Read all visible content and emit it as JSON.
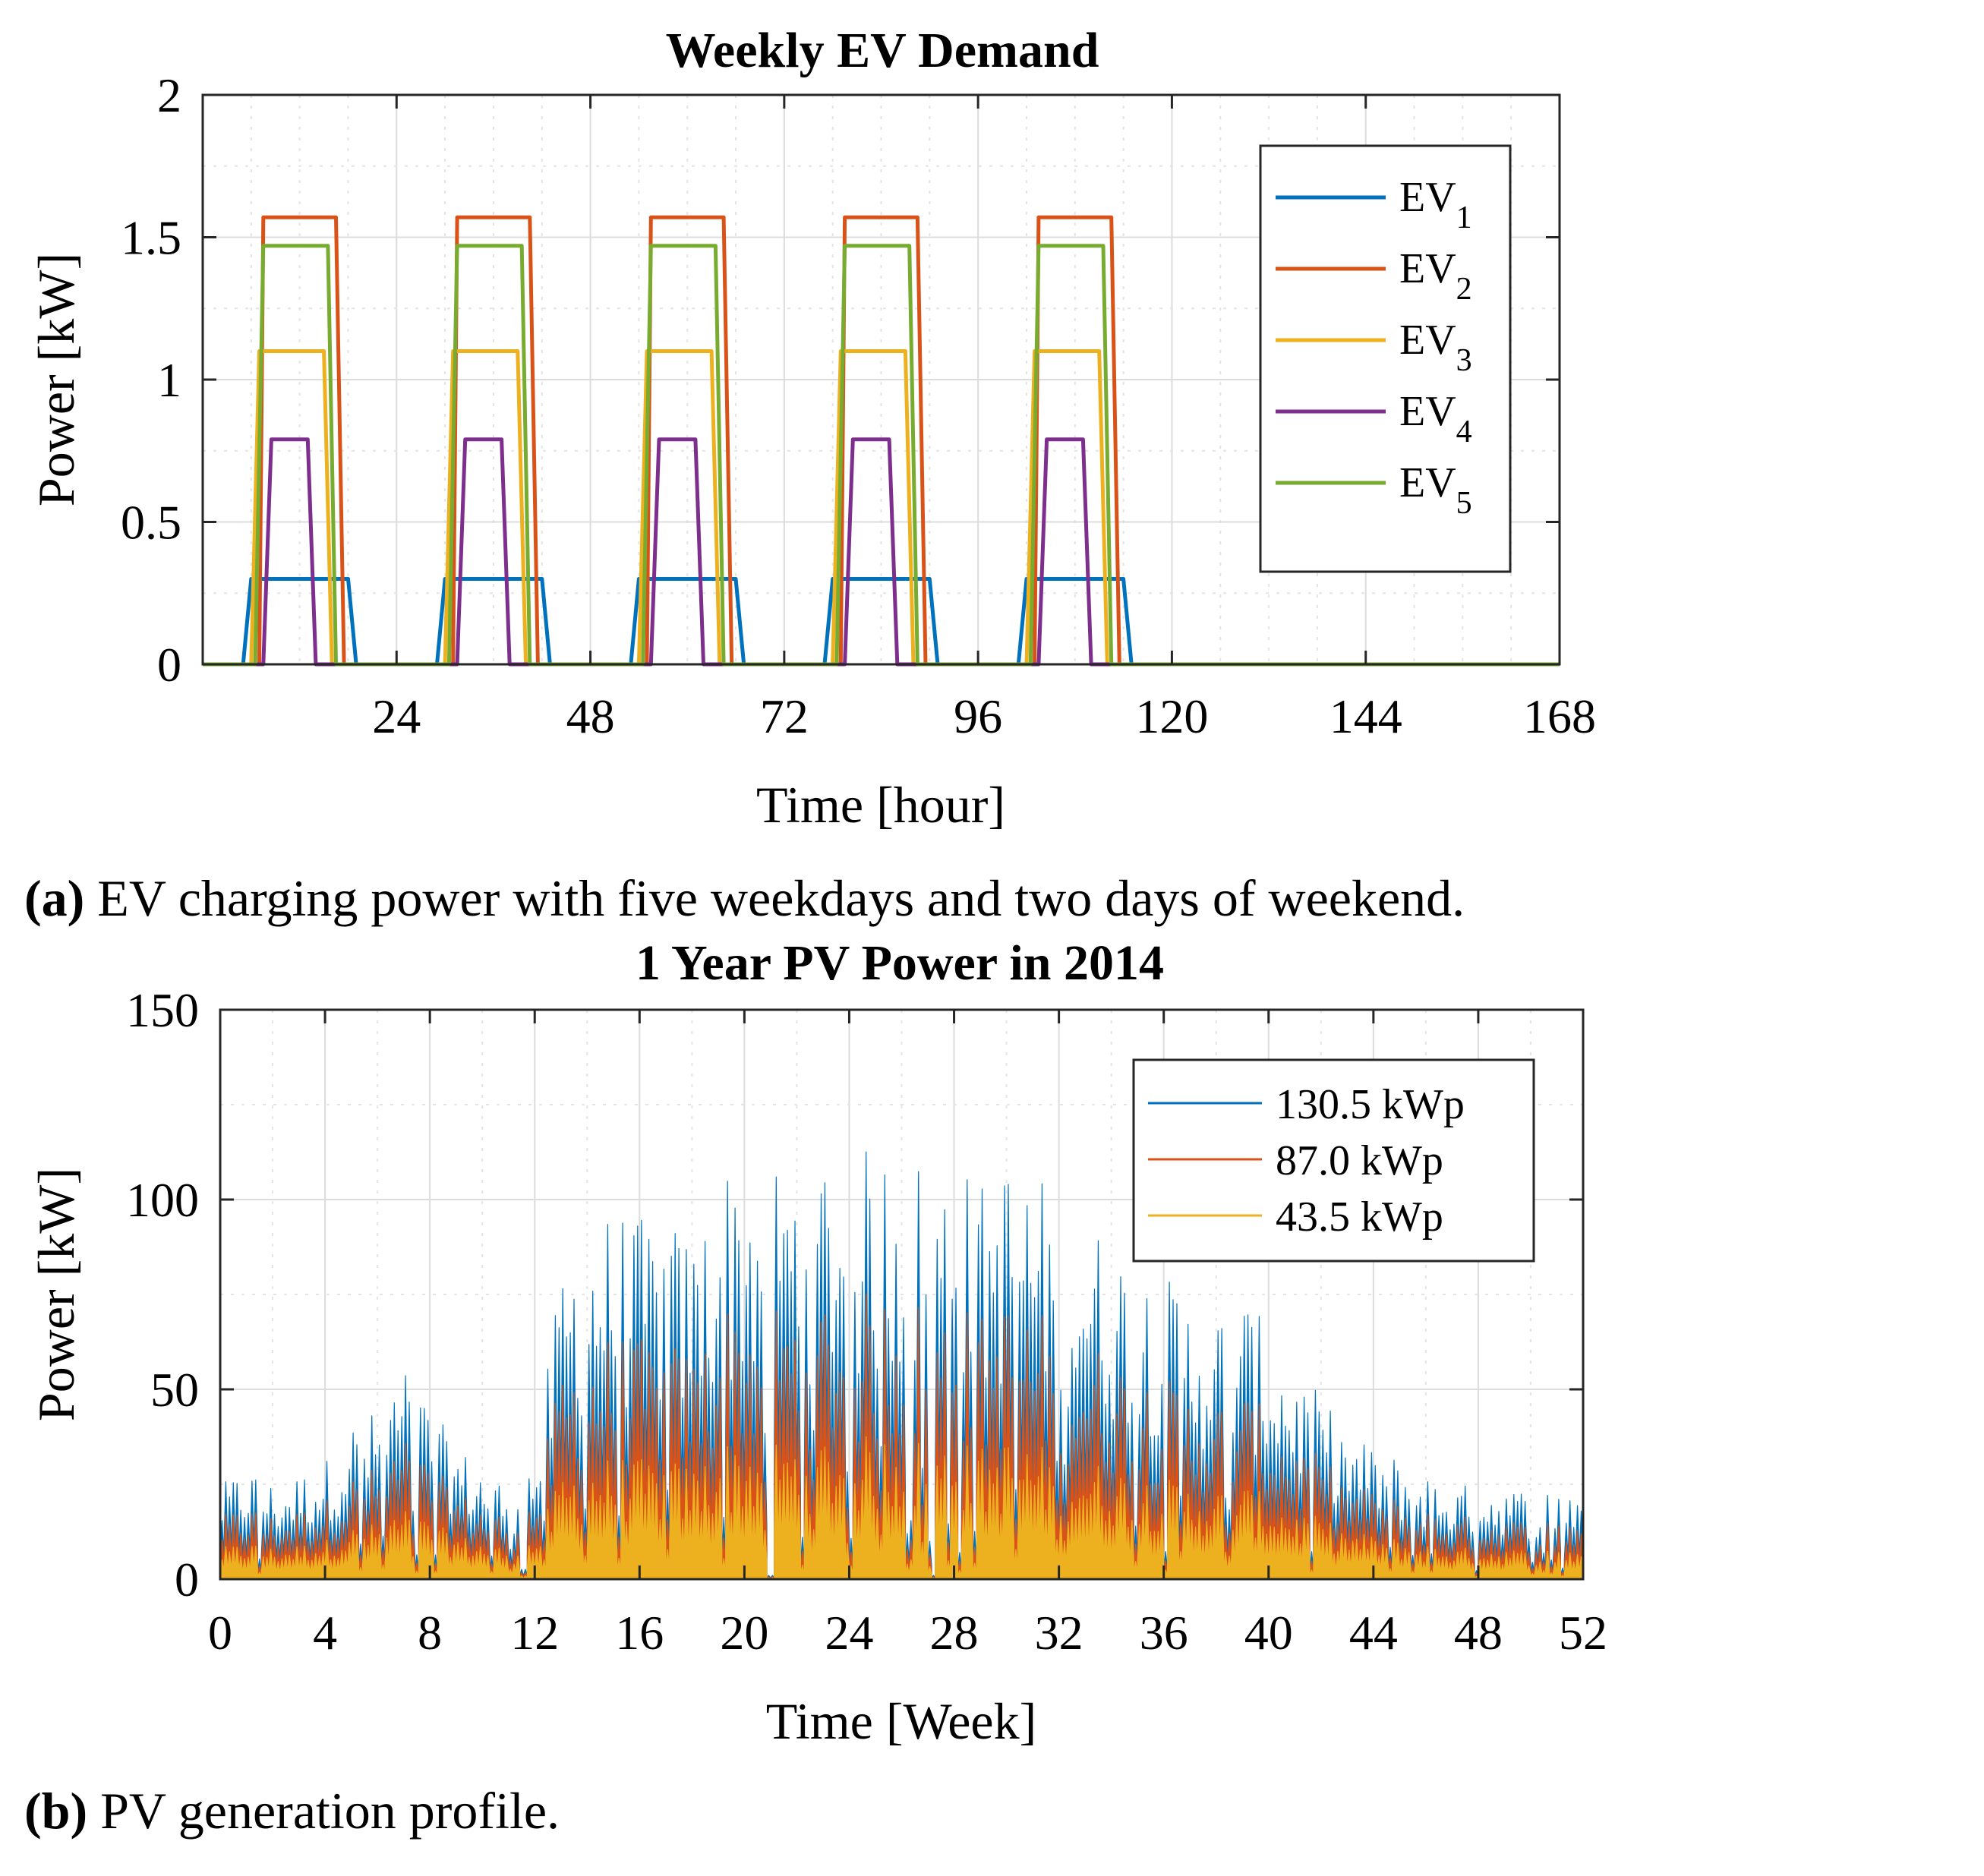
{
  "chart_data": [
    {
      "type": "line",
      "title": "Weekly EV Demand",
      "xlabel": "Time [hour]",
      "ylabel": "Power [kW]",
      "xlim": [
        0,
        168
      ],
      "ylim": [
        0,
        2
      ],
      "xticks": [
        "24",
        "48",
        "72",
        "96",
        "120",
        "144",
        "168"
      ],
      "yticks": [
        "0",
        "0.5",
        "1",
        "1.5",
        "2"
      ],
      "grid": true,
      "legend_position": "top-right",
      "pattern": "charging profile repeated on five weekdays starting at hour 0, 24, 48, 72, 96; zero on weekend (hours 120-168)",
      "series": [
        {
          "name": "EV",
          "sub": "1",
          "color": "#0072BD",
          "rise_start": 5,
          "rise_end": 6,
          "fall_start": 18,
          "fall_end": 19,
          "peak": 0.3
        },
        {
          "name": "EV",
          "sub": "2",
          "color": "#D95319",
          "rise_start": 7,
          "rise_end": 7.5,
          "fall_start": 16.5,
          "fall_end": 17.5,
          "peak": 1.57
        },
        {
          "name": "EV",
          "sub": "3",
          "color": "#EDB120",
          "rise_start": 6,
          "rise_end": 7,
          "fall_start": 15,
          "fall_end": 16,
          "peak": 1.1
        },
        {
          "name": "EV",
          "sub": "4",
          "color": "#7E2F8E",
          "rise_start": 7.5,
          "rise_end": 8.5,
          "fall_start": 13,
          "fall_end": 14,
          "peak": 0.79
        },
        {
          "name": "EV",
          "sub": "5",
          "color": "#77AC30",
          "rise_start": 6.5,
          "rise_end": 7.5,
          "fall_start": 15.5,
          "fall_end": 16.5,
          "peak": 1.47
        }
      ]
    },
    {
      "type": "area",
      "title": "1 Year PV Power in 2014",
      "xlabel": "Time [Week]",
      "ylabel": "Power [kW]",
      "xlim": [
        0,
        52
      ],
      "ylim": [
        0,
        150
      ],
      "xticks": [
        "0",
        "4",
        "8",
        "12",
        "16",
        "20",
        "24",
        "28",
        "32",
        "36",
        "40",
        "44",
        "48",
        "52"
      ],
      "yticks": [
        "0",
        "50",
        "100",
        "150"
      ],
      "grid": true,
      "legend_position": "top-right",
      "series": [
        {
          "name": "130.5 kWp",
          "color": "#0072BD",
          "scale": 1.0
        },
        {
          "name": "87.0 kWp",
          "color": "#D95319",
          "scale": 0.6667
        },
        {
          "name": "43.5 kWp",
          "color": "#EDB120",
          "scale": 0.3333
        }
      ],
      "weekly_peak_envelope_130_5kWp": [
        25,
        30,
        25,
        28,
        32,
        42,
        45,
        58,
        45,
        35,
        30,
        25,
        34,
        85,
        95,
        98,
        95,
        95,
        90,
        110,
        112,
        110,
        112,
        115,
        112,
        115,
        116,
        110,
        112,
        105,
        112,
        108,
        102,
        95,
        90,
        85,
        80,
        75,
        72,
        75,
        65,
        55,
        48,
        38,
        35,
        32,
        28,
        25,
        25,
        25,
        23,
        25
      ]
    }
  ],
  "captions": {
    "a_label": "(a)",
    "a_text": " EV charging power with five weekdays and two days of weekend.",
    "b_label": "(b)",
    "b_text": " PV generation profile."
  }
}
